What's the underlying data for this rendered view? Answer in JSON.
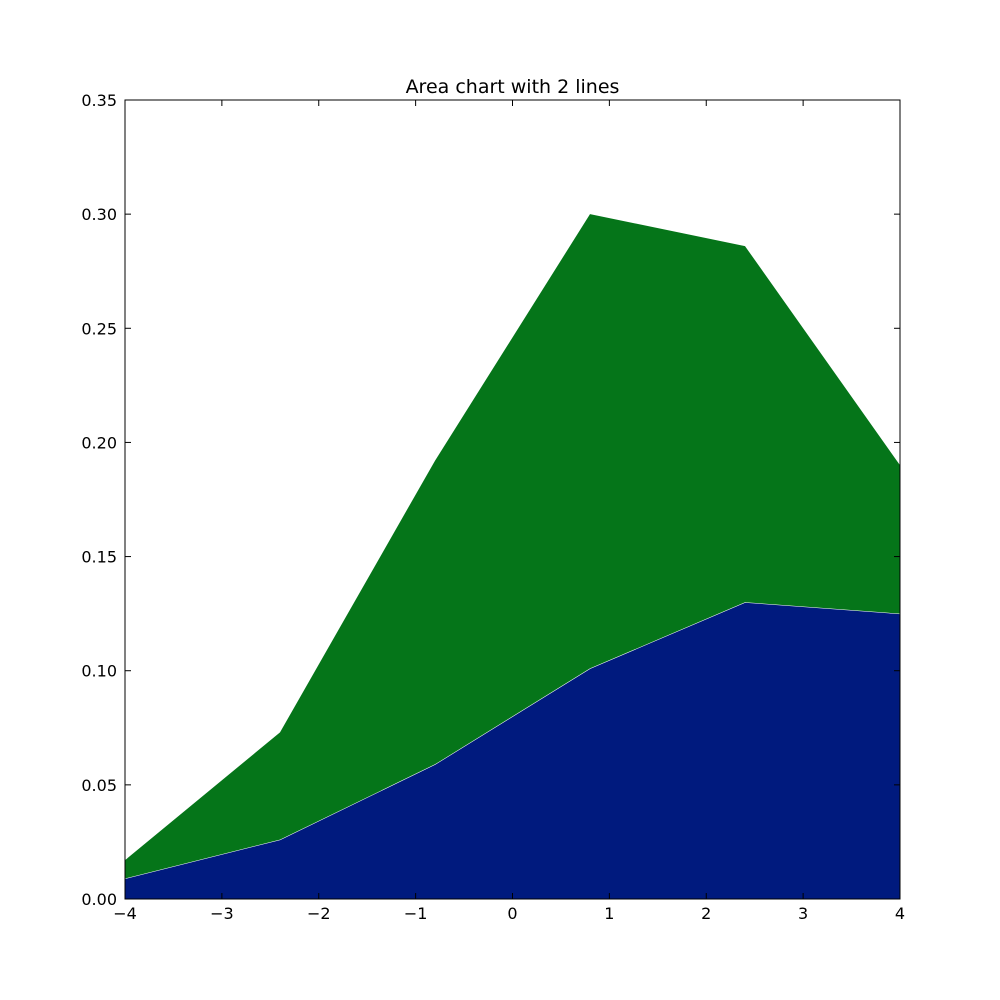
{
  "chart_data": {
    "type": "area",
    "stacked": true,
    "title": "Area chart with 2 lines",
    "xlabel": "",
    "ylabel": "",
    "xlim": [
      -4,
      4
    ],
    "ylim": [
      0,
      0.35
    ],
    "x": [
      -4,
      -2.4,
      -0.8,
      0.8,
      2.4,
      4
    ],
    "series": [
      {
        "values": [
          0.009,
          0.026,
          0.059,
          0.101,
          0.13,
          0.125
        ],
        "color": "#001a7e"
      },
      {
        "values": [
          0.008,
          0.047,
          0.133,
          0.199,
          0.156,
          0.065
        ],
        "color": "#057519"
      }
    ],
    "x_ticks": [
      -4,
      -3,
      -2,
      -1,
      0,
      1,
      2,
      3,
      4
    ],
    "x_tick_labels": [
      "−4",
      "−3",
      "−2",
      "−1",
      "0",
      "1",
      "2",
      "3",
      "4"
    ],
    "y_ticks": [
      0,
      0.05,
      0.1,
      0.15,
      0.2,
      0.25,
      0.3,
      0.35
    ],
    "y_tick_labels": [
      "0.00",
      "0.05",
      "0.10",
      "0.15",
      "0.20",
      "0.25",
      "0.30",
      "0.35"
    ],
    "grid": false,
    "legend": "none",
    "separator_color": "#ffffff",
    "axes_color": "#000000"
  }
}
